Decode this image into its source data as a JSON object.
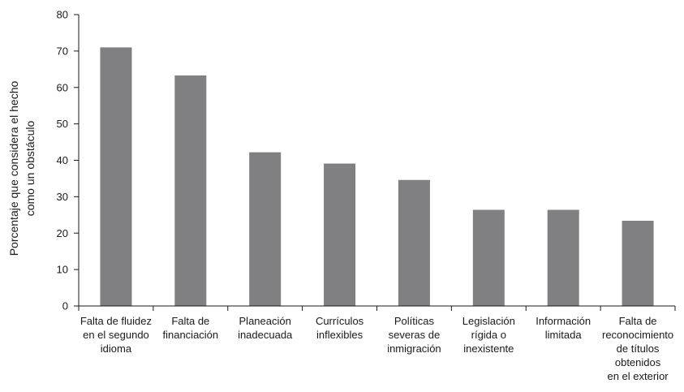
{
  "chart_data": {
    "type": "bar",
    "ylabel": "Porcentaje que considera el hecho como un obstáculo",
    "ylabel_lines": [
      "Porcentaje que considera el hecho",
      "como un obstáculo"
    ],
    "ylim": [
      0,
      80
    ],
    "yticks": [
      0,
      10,
      20,
      30,
      40,
      50,
      60,
      70,
      80
    ],
    "categories": [
      "Falta de fluidez en el segundo idioma",
      "Falta de financiación",
      "Planeación inadecuada",
      "Currículos inflexibles",
      "Políticas severas de inmigración",
      "Legislación rígida o inexistente",
      "Información limitada",
      "Falta de reconocimiento de títulos obtenidos en el exterior"
    ],
    "category_lines": [
      [
        "Falta de fluidez",
        "en el segundo",
        "idioma"
      ],
      [
        "Falta de",
        "financiación"
      ],
      [
        "Planeación",
        "inadecuada"
      ],
      [
        "Currículos",
        "inflexibles"
      ],
      [
        "Políticas",
        "severas de",
        "inmigración"
      ],
      [
        "Legislación",
        "rígida o",
        "inexistente"
      ],
      [
        "Información",
        "limitada"
      ],
      [
        "Falta de",
        "reconocimiento",
        "de títulos",
        "obtenidos",
        "en el exterior"
      ]
    ],
    "values": [
      71,
      63.3,
      42.2,
      39.1,
      34.6,
      26.4,
      26.4,
      23.4
    ],
    "bar_color": "#808083",
    "grid": false
  }
}
